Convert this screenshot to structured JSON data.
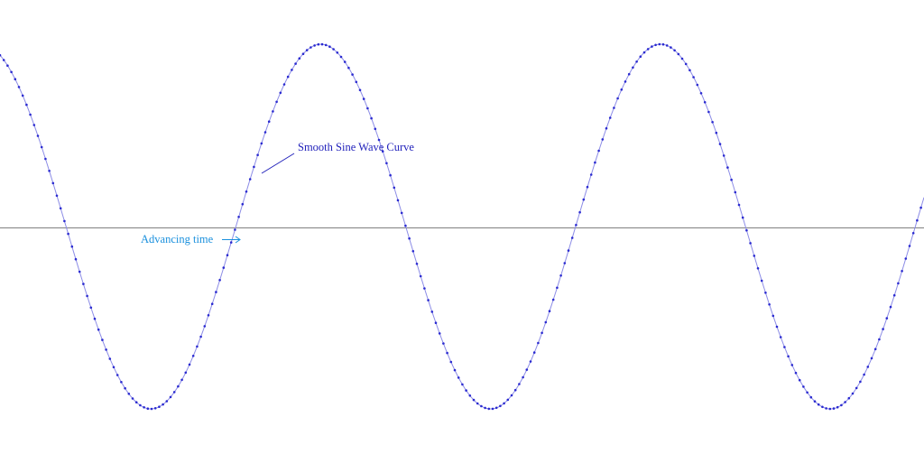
{
  "chart_data": {
    "type": "line",
    "title": "",
    "xlabel": "",
    "ylabel": "",
    "ylim": [
      -1,
      1
    ],
    "grid": false,
    "series": [
      {
        "function": "sine",
        "amplitude": 1,
        "cycles_shown": 2.72,
        "start_phase_deg": -250,
        "markers": true
      }
    ],
    "annotations": [
      {
        "text": "Smooth Sine Wave Curve",
        "type": "leader-label"
      },
      {
        "text": "Advancing time",
        "type": "arrow-label",
        "arrow": "right"
      }
    ]
  },
  "colors": {
    "curve_line": "#8c8ce6",
    "curve_markers": "#2a2ad0",
    "axis": "#808080",
    "curve_label": "#2222bb",
    "time_label": "#1a90dd"
  }
}
